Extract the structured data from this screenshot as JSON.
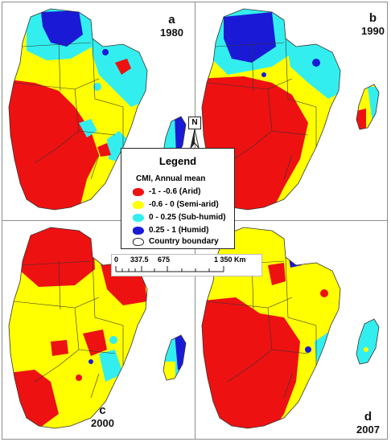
{
  "panels": [
    {
      "letter": "a",
      "year": "1980"
    },
    {
      "letter": "b",
      "year": "1990"
    },
    {
      "letter": "c",
      "year": "2000"
    },
    {
      "letter": "d",
      "year": "2007"
    }
  ],
  "legend": {
    "title": "Legend",
    "subtitle": "CMI, Annual mean",
    "items": [
      {
        "label": "-1 - -0.6 (Arid)",
        "color": "#ee1111"
      },
      {
        "label": "-0.6 - 0 (Semi-arid)",
        "color": "#ffff00"
      },
      {
        "label": "0 - 0.25 (Sub-humid)",
        "color": "#33eeee"
      },
      {
        "label": "0.25 - 1 (Humid)",
        "color": "#1a1ad6"
      },
      {
        "label": "Country boundary",
        "color": "#ffffff"
      }
    ]
  },
  "north_label": "N",
  "scale": {
    "ticks": [
      "0",
      "337.5",
      "675",
      "1 350 Km"
    ]
  },
  "colors": {
    "arid": "#ee1111",
    "semi_arid": "#ffff00",
    "sub_humid": "#33eeee",
    "humid": "#1a1ad6",
    "boundary": "#333333"
  }
}
